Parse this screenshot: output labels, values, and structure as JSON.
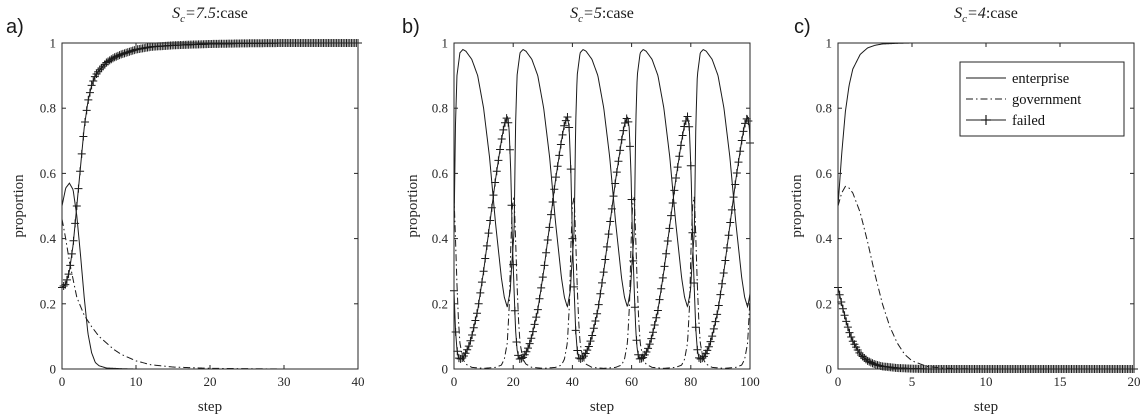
{
  "chart_data": [
    {
      "type": "line",
      "panel": "a)",
      "title": {
        "symbol": "S",
        "subscript": "c",
        "value": "=7.5",
        "suffix": ":case"
      },
      "xlabel": "step",
      "ylabel": "proportion",
      "xlim": [
        0,
        40
      ],
      "ylim": [
        0,
        1
      ],
      "xticks": [
        "0",
        "10",
        "20",
        "30",
        "40"
      ],
      "yticks": [
        "0",
        "0.2",
        "0.4",
        "0.6",
        "0.8",
        "1"
      ],
      "legend": null,
      "series": [
        {
          "name": "enterprise",
          "style": "solid",
          "x": [
            0,
            0.5,
            1,
            1.5,
            2,
            2.5,
            3,
            3.5,
            4,
            4.5,
            5,
            6,
            8,
            10,
            20,
            30,
            40
          ],
          "y": [
            0.5,
            0.555,
            0.57,
            0.55,
            0.47,
            0.35,
            0.22,
            0.11,
            0.05,
            0.02,
            0.01,
            0.003,
            0.001,
            0,
            0,
            0,
            0
          ]
        },
        {
          "name": "government",
          "style": "dashdot",
          "x": [
            0,
            0.5,
            1,
            2,
            3,
            4,
            5,
            6,
            7,
            8,
            10,
            12,
            15,
            20,
            25,
            30,
            40
          ],
          "y": [
            0.46,
            0.4,
            0.33,
            0.22,
            0.165,
            0.13,
            0.1,
            0.08,
            0.06,
            0.045,
            0.025,
            0.013,
            0.006,
            0.002,
            0.001,
            0,
            0
          ]
        },
        {
          "name": "failed",
          "style": "solid-plus",
          "x": [
            0,
            0.5,
            1,
            1.5,
            2,
            2.5,
            3,
            3.5,
            4,
            4.5,
            5,
            6,
            7,
            8,
            10,
            12,
            15,
            20,
            25,
            30,
            40
          ],
          "y": [
            0.25,
            0.26,
            0.3,
            0.38,
            0.5,
            0.62,
            0.74,
            0.82,
            0.87,
            0.9,
            0.915,
            0.94,
            0.955,
            0.965,
            0.98,
            0.988,
            0.993,
            0.997,
            0.999,
            1.0,
            1.0
          ]
        }
      ]
    },
    {
      "type": "line",
      "panel": "b)",
      "title": {
        "symbol": "S",
        "subscript": "c",
        "value": "=5",
        "suffix": ":case"
      },
      "xlabel": "step",
      "ylabel": "proportion",
      "xlim": [
        0,
        100
      ],
      "ylim": [
        0,
        1
      ],
      "xticks": [
        "0",
        "20",
        "40",
        "60",
        "80",
        "100"
      ],
      "yticks": [
        "0",
        "0.2",
        "0.4",
        "0.6",
        "0.8",
        "1"
      ],
      "legend": null,
      "series": [
        {
          "name": "enterprise",
          "style": "solid",
          "period": 20.3,
          "x": [
            0,
            0.5,
            1,
            2,
            3,
            4,
            6,
            8,
            10,
            12,
            14,
            16,
            17,
            18,
            19,
            19.5,
            20.3
          ],
          "y": [
            0.42,
            0.75,
            0.9,
            0.97,
            0.98,
            0.975,
            0.95,
            0.9,
            0.8,
            0.65,
            0.45,
            0.28,
            0.22,
            0.19,
            0.24,
            0.32,
            0.42
          ]
        },
        {
          "name": "government",
          "style": "dashdot",
          "period": 20.3,
          "x": [
            0,
            0.5,
            1,
            1.5,
            2,
            3,
            4,
            6,
            10,
            14,
            16,
            17,
            18,
            18.7,
            19.2,
            19.7,
            20.3
          ],
          "y": [
            0.53,
            0.4,
            0.26,
            0.15,
            0.08,
            0.03,
            0.015,
            0.005,
            0.002,
            0.005,
            0.012,
            0.03,
            0.08,
            0.2,
            0.38,
            0.5,
            0.53
          ]
        },
        {
          "name": "failed",
          "style": "solid-plus",
          "period": 20.3,
          "x": [
            0,
            0.5,
            1,
            1.5,
            2,
            3,
            4,
            5,
            6,
            8,
            10,
            12,
            14,
            16,
            17,
            18,
            18.6,
            19.2,
            19.7,
            20.3
          ],
          "y": [
            0.24,
            0.12,
            0.06,
            0.035,
            0.03,
            0.035,
            0.05,
            0.07,
            0.1,
            0.18,
            0.3,
            0.44,
            0.58,
            0.7,
            0.75,
            0.775,
            0.74,
            0.6,
            0.4,
            0.24
          ]
        }
      ]
    },
    {
      "type": "line",
      "panel": "c)",
      "title": {
        "symbol": "S",
        "subscript": "c",
        "value": "=4",
        "suffix": ":case"
      },
      "xlabel": "step",
      "ylabel": "proportion",
      "xlim": [
        0,
        20
      ],
      "ylim": [
        0,
        1
      ],
      "xticks": [
        "0",
        "5",
        "10",
        "15",
        "20"
      ],
      "yticks": [
        "0",
        "0.2",
        "0.4",
        "0.6",
        "0.8",
        "1"
      ],
      "legend": {
        "position": "top-right",
        "entries": [
          "enterprise",
          "government",
          "failed"
        ]
      },
      "series": [
        {
          "name": "enterprise",
          "style": "solid",
          "x": [
            0,
            0.25,
            0.5,
            0.75,
            1,
            1.5,
            2,
            2.5,
            3,
            4,
            5,
            6,
            8,
            10,
            15,
            20
          ],
          "y": [
            0.5,
            0.66,
            0.79,
            0.87,
            0.92,
            0.965,
            0.985,
            0.993,
            0.997,
            0.999,
            1.0,
            1.0,
            1.0,
            1.0,
            1.0,
            1.0
          ]
        },
        {
          "name": "government",
          "style": "dashdot",
          "x": [
            0,
            0.25,
            0.5,
            0.75,
            1,
            1.5,
            2,
            2.5,
            3,
            3.5,
            4,
            4.5,
            5,
            6,
            7,
            8,
            10,
            15,
            20
          ],
          "y": [
            0.5,
            0.54,
            0.56,
            0.555,
            0.54,
            0.48,
            0.39,
            0.29,
            0.2,
            0.13,
            0.08,
            0.045,
            0.025,
            0.008,
            0.003,
            0.001,
            0,
            0,
            0
          ]
        },
        {
          "name": "failed",
          "style": "solid-plus",
          "x": [
            0,
            0.25,
            0.5,
            0.75,
            1,
            1.5,
            2,
            2.5,
            3,
            4,
            5,
            6,
            8,
            10,
            15,
            20
          ],
          "y": [
            0.25,
            0.2,
            0.155,
            0.115,
            0.085,
            0.045,
            0.025,
            0.014,
            0.008,
            0.003,
            0.001,
            0,
            0,
            0,
            0,
            0
          ]
        }
      ]
    }
  ]
}
